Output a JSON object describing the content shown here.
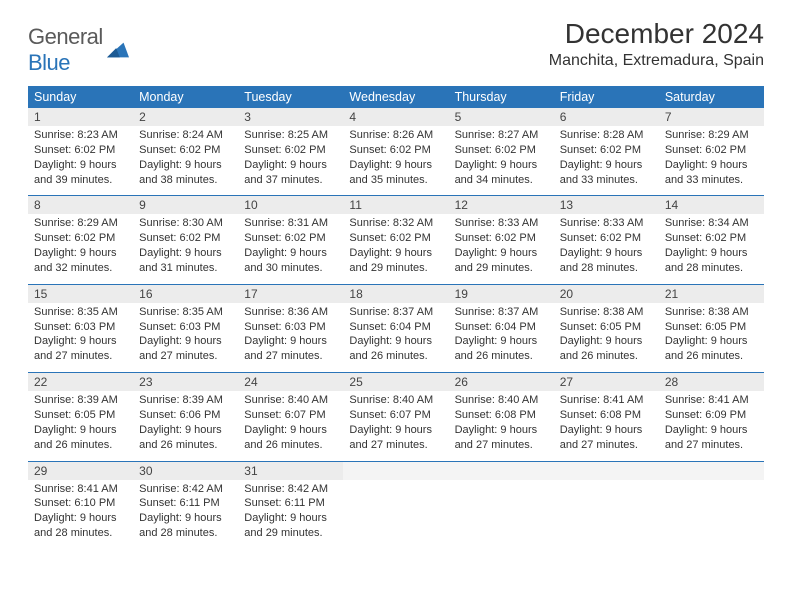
{
  "logo": {
    "textGray": "General",
    "textBlue": "Blue"
  },
  "title": "December 2024",
  "location": "Manchita, Extremadura, Spain",
  "colors": {
    "headerBlue": "#2a74b8",
    "dayBg": "#ececec",
    "ruleBlue": "#2a74b8",
    "text": "#333333",
    "background": "#ffffff"
  },
  "typography": {
    "titleFontSize": 28,
    "locationFontSize": 16,
    "dowFontSize": 12.5,
    "bodyFontSize": 11
  },
  "daysOfWeek": [
    "Sunday",
    "Monday",
    "Tuesday",
    "Wednesday",
    "Thursday",
    "Friday",
    "Saturday"
  ],
  "weeks": [
    [
      {
        "n": "1",
        "sr": "Sunrise: 8:23 AM",
        "ss": "Sunset: 6:02 PM",
        "d1": "Daylight: 9 hours",
        "d2": "and 39 minutes."
      },
      {
        "n": "2",
        "sr": "Sunrise: 8:24 AM",
        "ss": "Sunset: 6:02 PM",
        "d1": "Daylight: 9 hours",
        "d2": "and 38 minutes."
      },
      {
        "n": "3",
        "sr": "Sunrise: 8:25 AM",
        "ss": "Sunset: 6:02 PM",
        "d1": "Daylight: 9 hours",
        "d2": "and 37 minutes."
      },
      {
        "n": "4",
        "sr": "Sunrise: 8:26 AM",
        "ss": "Sunset: 6:02 PM",
        "d1": "Daylight: 9 hours",
        "d2": "and 35 minutes."
      },
      {
        "n": "5",
        "sr": "Sunrise: 8:27 AM",
        "ss": "Sunset: 6:02 PM",
        "d1": "Daylight: 9 hours",
        "d2": "and 34 minutes."
      },
      {
        "n": "6",
        "sr": "Sunrise: 8:28 AM",
        "ss": "Sunset: 6:02 PM",
        "d1": "Daylight: 9 hours",
        "d2": "and 33 minutes."
      },
      {
        "n": "7",
        "sr": "Sunrise: 8:29 AM",
        "ss": "Sunset: 6:02 PM",
        "d1": "Daylight: 9 hours",
        "d2": "and 33 minutes."
      }
    ],
    [
      {
        "n": "8",
        "sr": "Sunrise: 8:29 AM",
        "ss": "Sunset: 6:02 PM",
        "d1": "Daylight: 9 hours",
        "d2": "and 32 minutes."
      },
      {
        "n": "9",
        "sr": "Sunrise: 8:30 AM",
        "ss": "Sunset: 6:02 PM",
        "d1": "Daylight: 9 hours",
        "d2": "and 31 minutes."
      },
      {
        "n": "10",
        "sr": "Sunrise: 8:31 AM",
        "ss": "Sunset: 6:02 PM",
        "d1": "Daylight: 9 hours",
        "d2": "and 30 minutes."
      },
      {
        "n": "11",
        "sr": "Sunrise: 8:32 AM",
        "ss": "Sunset: 6:02 PM",
        "d1": "Daylight: 9 hours",
        "d2": "and 29 minutes."
      },
      {
        "n": "12",
        "sr": "Sunrise: 8:33 AM",
        "ss": "Sunset: 6:02 PM",
        "d1": "Daylight: 9 hours",
        "d2": "and 29 minutes."
      },
      {
        "n": "13",
        "sr": "Sunrise: 8:33 AM",
        "ss": "Sunset: 6:02 PM",
        "d1": "Daylight: 9 hours",
        "d2": "and 28 minutes."
      },
      {
        "n": "14",
        "sr": "Sunrise: 8:34 AM",
        "ss": "Sunset: 6:02 PM",
        "d1": "Daylight: 9 hours",
        "d2": "and 28 minutes."
      }
    ],
    [
      {
        "n": "15",
        "sr": "Sunrise: 8:35 AM",
        "ss": "Sunset: 6:03 PM",
        "d1": "Daylight: 9 hours",
        "d2": "and 27 minutes."
      },
      {
        "n": "16",
        "sr": "Sunrise: 8:35 AM",
        "ss": "Sunset: 6:03 PM",
        "d1": "Daylight: 9 hours",
        "d2": "and 27 minutes."
      },
      {
        "n": "17",
        "sr": "Sunrise: 8:36 AM",
        "ss": "Sunset: 6:03 PM",
        "d1": "Daylight: 9 hours",
        "d2": "and 27 minutes."
      },
      {
        "n": "18",
        "sr": "Sunrise: 8:37 AM",
        "ss": "Sunset: 6:04 PM",
        "d1": "Daylight: 9 hours",
        "d2": "and 26 minutes."
      },
      {
        "n": "19",
        "sr": "Sunrise: 8:37 AM",
        "ss": "Sunset: 6:04 PM",
        "d1": "Daylight: 9 hours",
        "d2": "and 26 minutes."
      },
      {
        "n": "20",
        "sr": "Sunrise: 8:38 AM",
        "ss": "Sunset: 6:05 PM",
        "d1": "Daylight: 9 hours",
        "d2": "and 26 minutes."
      },
      {
        "n": "21",
        "sr": "Sunrise: 8:38 AM",
        "ss": "Sunset: 6:05 PM",
        "d1": "Daylight: 9 hours",
        "d2": "and 26 minutes."
      }
    ],
    [
      {
        "n": "22",
        "sr": "Sunrise: 8:39 AM",
        "ss": "Sunset: 6:05 PM",
        "d1": "Daylight: 9 hours",
        "d2": "and 26 minutes."
      },
      {
        "n": "23",
        "sr": "Sunrise: 8:39 AM",
        "ss": "Sunset: 6:06 PM",
        "d1": "Daylight: 9 hours",
        "d2": "and 26 minutes."
      },
      {
        "n": "24",
        "sr": "Sunrise: 8:40 AM",
        "ss": "Sunset: 6:07 PM",
        "d1": "Daylight: 9 hours",
        "d2": "and 26 minutes."
      },
      {
        "n": "25",
        "sr": "Sunrise: 8:40 AM",
        "ss": "Sunset: 6:07 PM",
        "d1": "Daylight: 9 hours",
        "d2": "and 27 minutes."
      },
      {
        "n": "26",
        "sr": "Sunrise: 8:40 AM",
        "ss": "Sunset: 6:08 PM",
        "d1": "Daylight: 9 hours",
        "d2": "and 27 minutes."
      },
      {
        "n": "27",
        "sr": "Sunrise: 8:41 AM",
        "ss": "Sunset: 6:08 PM",
        "d1": "Daylight: 9 hours",
        "d2": "and 27 minutes."
      },
      {
        "n": "28",
        "sr": "Sunrise: 8:41 AM",
        "ss": "Sunset: 6:09 PM",
        "d1": "Daylight: 9 hours",
        "d2": "and 27 minutes."
      }
    ],
    [
      {
        "n": "29",
        "sr": "Sunrise: 8:41 AM",
        "ss": "Sunset: 6:10 PM",
        "d1": "Daylight: 9 hours",
        "d2": "and 28 minutes."
      },
      {
        "n": "30",
        "sr": "Sunrise: 8:42 AM",
        "ss": "Sunset: 6:11 PM",
        "d1": "Daylight: 9 hours",
        "d2": "and 28 minutes."
      },
      {
        "n": "31",
        "sr": "Sunrise: 8:42 AM",
        "ss": "Sunset: 6:11 PM",
        "d1": "Daylight: 9 hours",
        "d2": "and 29 minutes."
      },
      {
        "empty": true
      },
      {
        "empty": true
      },
      {
        "empty": true
      },
      {
        "empty": true
      }
    ]
  ]
}
